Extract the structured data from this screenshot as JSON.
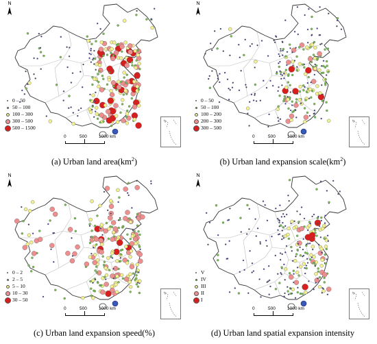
{
  "compass_label": "N",
  "scale": {
    "labels": [
      "0",
      "500",
      "1000 km"
    ]
  },
  "colors": {
    "outline": "#333333",
    "province": "#bdbdbd",
    "hk_blue": "#3a58b8"
  },
  "panels": [
    {
      "caption_main": "(a) Urban land area(km",
      "caption_sup": "2",
      "caption_tail": ")",
      "legend": [
        {
          "label": "0 – 50",
          "size": 2,
          "color": "#3b3b8f"
        },
        {
          "label": "50 – 100",
          "size": 3,
          "color": "#74c34a"
        },
        {
          "label": "100 – 300",
          "size": 5,
          "color": "#f3f08f"
        },
        {
          "label": "300 – 500",
          "size": 7,
          "color": "#ee8f8f"
        },
        {
          "label": "500 – 1500",
          "size": 9,
          "color": "#d91e1e"
        }
      ]
    },
    {
      "caption_main": "(b) Urban land expansion scale(km",
      "caption_sup": "2",
      "caption_tail": ")",
      "legend": [
        {
          "label": "0 – 50",
          "size": 2,
          "color": "#3b3b8f"
        },
        {
          "label": "50 – 100",
          "size": 3,
          "color": "#74c34a"
        },
        {
          "label": "100 – 200",
          "size": 5,
          "color": "#f3f08f"
        },
        {
          "label": "200 – 300",
          "size": 7,
          "color": "#ee8f8f"
        },
        {
          "label": "300 – 500",
          "size": 9,
          "color": "#d91e1e"
        }
      ]
    },
    {
      "caption_main": "(c) Urban land expansion speed(%)",
      "caption_sup": "",
      "caption_tail": "",
      "legend": [
        {
          "label": "0 – 2",
          "size": 2,
          "color": "#3b3b8f"
        },
        {
          "label": "2 – 5",
          "size": 3,
          "color": "#74c34a"
        },
        {
          "label": "5 – 10",
          "size": 5,
          "color": "#f3f08f"
        },
        {
          "label": "10 – 30",
          "size": 7,
          "color": "#ee8f8f"
        },
        {
          "label": "30 – 50",
          "size": 9,
          "color": "#d91e1e"
        }
      ]
    },
    {
      "caption_main": "(d) Urban land spatial expansion intensity",
      "caption_sup": "",
      "caption_tail": "",
      "legend": [
        {
          "label": "V",
          "size": 2,
          "color": "#3b3b8f"
        },
        {
          "label": "IV",
          "size": 3,
          "color": "#74c34a"
        },
        {
          "label": "III",
          "size": 5,
          "color": "#f3f08f"
        },
        {
          "label": "II",
          "size": 7,
          "color": "#ee8f8f"
        },
        {
          "label": "I",
          "size": 9,
          "color": "#d91e1e"
        }
      ]
    }
  ]
}
